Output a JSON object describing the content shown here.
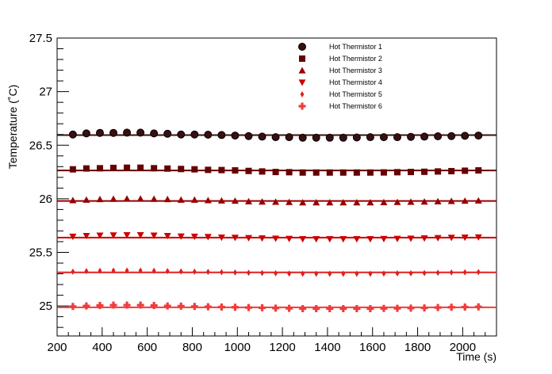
{
  "chart_data": {
    "type": "scatter",
    "title": "",
    "xlabel": "Time (s)",
    "ylabel": "Temperature (˚C)",
    "xlim": [
      200,
      2150
    ],
    "ylim": [
      24.72,
      27.5
    ],
    "x_ticks": [
      200,
      400,
      600,
      800,
      1000,
      1200,
      1400,
      1600,
      1800,
      2000
    ],
    "y_ticks": [
      25,
      25.5,
      26,
      26.5,
      27,
      27.5
    ],
    "y_tick_labels": [
      "25",
      "25.5",
      "26",
      "26.5",
      "27",
      "27.5"
    ],
    "grid": false,
    "legend_position": "top-right",
    "x": [
      270,
      330,
      390,
      450,
      510,
      570,
      630,
      690,
      750,
      810,
      870,
      930,
      990,
      1050,
      1110,
      1170,
      1230,
      1290,
      1350,
      1410,
      1470,
      1530,
      1590,
      1650,
      1710,
      1770,
      1830,
      1890,
      1950,
      2010,
      2070
    ],
    "series": [
      {
        "name": "Hot Thermistor 1",
        "marker": "circle",
        "color": "#3a0f0f",
        "fit_value": 26.594,
        "values": [
          26.6,
          26.61,
          26.615,
          26.615,
          26.617,
          26.617,
          26.61,
          26.607,
          26.6,
          26.6,
          26.598,
          26.595,
          26.59,
          26.585,
          26.58,
          26.575,
          26.575,
          26.57,
          26.57,
          26.57,
          26.57,
          26.572,
          26.575,
          26.575,
          26.575,
          26.578,
          26.58,
          26.583,
          26.585,
          26.588,
          26.59
        ]
      },
      {
        "name": "Hot Thermistor 2",
        "marker": "square",
        "color": "#660000",
        "fit_value": 26.264,
        "values": [
          26.275,
          26.283,
          26.285,
          26.288,
          26.29,
          26.29,
          26.285,
          26.282,
          26.278,
          26.275,
          26.27,
          26.268,
          26.265,
          26.26,
          26.255,
          26.25,
          26.248,
          26.245,
          26.245,
          26.245,
          26.245,
          26.245,
          26.245,
          26.246,
          26.248,
          26.25,
          26.252,
          26.255,
          26.258,
          26.262,
          26.265
        ]
      },
      {
        "name": "Hot Thermistor 3",
        "marker": "triangle-up",
        "color": "#990000",
        "fit_value": 25.98,
        "values": [
          25.985,
          25.99,
          25.995,
          25.998,
          26.0,
          26.0,
          25.998,
          25.995,
          25.99,
          25.99,
          25.985,
          25.982,
          25.98,
          25.975,
          25.972,
          25.97,
          25.968,
          25.965,
          25.965,
          25.965,
          25.965,
          25.965,
          25.965,
          25.967,
          25.968,
          25.97,
          25.972,
          25.975,
          25.978,
          25.98,
          25.982
        ]
      },
      {
        "name": "Hot Thermistor 4",
        "marker": "triangle-down",
        "color": "#cc0000",
        "fit_value": 25.638,
        "values": [
          25.648,
          25.655,
          25.658,
          25.66,
          25.662,
          25.662,
          25.658,
          25.655,
          25.65,
          25.648,
          25.645,
          25.64,
          25.638,
          25.635,
          25.632,
          25.63,
          25.628,
          25.625,
          25.625,
          25.625,
          25.625,
          25.625,
          25.625,
          25.627,
          25.628,
          25.63,
          25.632,
          25.635,
          25.638,
          25.64,
          25.642
        ]
      },
      {
        "name": "Hot Thermistor 5",
        "marker": "diamond",
        "color": "#e02020",
        "fit_value": 25.313,
        "values": [
          25.32,
          25.325,
          25.328,
          25.33,
          25.33,
          25.33,
          25.328,
          25.325,
          25.322,
          25.32,
          25.318,
          25.315,
          25.312,
          25.31,
          25.308,
          25.305,
          25.302,
          25.3,
          25.3,
          25.3,
          25.3,
          25.3,
          25.3,
          25.302,
          25.304,
          25.305,
          25.307,
          25.31,
          25.312,
          25.314,
          25.316
        ]
      },
      {
        "name": "Hot Thermistor 6",
        "marker": "cross",
        "color": "#f03c3c",
        "fit_value": 24.987,
        "values": [
          24.995,
          25.0,
          25.005,
          25.008,
          25.008,
          25.008,
          25.005,
          25.0,
          24.998,
          24.995,
          24.993,
          24.99,
          24.988,
          24.985,
          24.983,
          24.98,
          24.978,
          24.975,
          24.975,
          24.975,
          24.975,
          24.975,
          24.975,
          24.977,
          24.978,
          24.98,
          24.982,
          24.985,
          24.988,
          24.99,
          24.992
        ]
      }
    ]
  }
}
